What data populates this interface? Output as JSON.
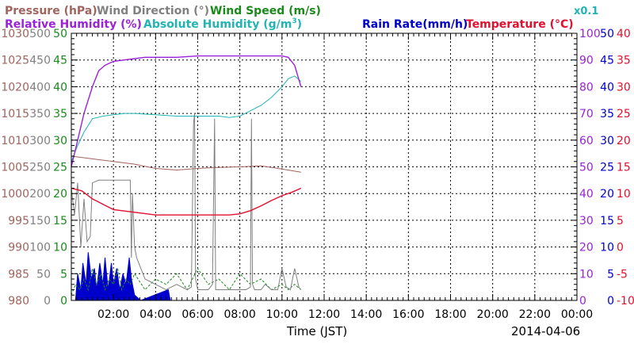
{
  "chart_data": {
    "type": "line",
    "xlabel": "Time (JST)",
    "date_label": "2014-04-06",
    "x_ticks": [
      "02:00",
      "04:00",
      "06:00",
      "08:00",
      "10:00",
      "12:00",
      "14:00",
      "16:00",
      "18:00",
      "20:00",
      "22:00",
      "00:00"
    ],
    "x_range_hours": [
      0,
      24
    ],
    "grid": true,
    "legend": {
      "row1": [
        {
          "key": "pressure",
          "label": "Pressure (hPa)",
          "color": "#a0645e"
        },
        {
          "key": "wind_dir",
          "label": "Wind Direction (°)",
          "color": "#808080"
        },
        {
          "key": "wind_speed",
          "label": "Wind Speed (m/s)",
          "color": "#1a8a1a"
        }
      ],
      "row2": [
        {
          "key": "rel_hum",
          "label": "Relative Humidity (%)",
          "color": "#9a22d8"
        },
        {
          "key": "abs_hum",
          "label": "Absolute Humidity (g/m",
          "sup": "3",
          "close": ")",
          "color": "#22b4b4"
        },
        {
          "key": "rain",
          "label": "Rain Rate(mm/h)",
          "color": "#0000cc"
        },
        {
          "key": "temp",
          "label": "Temperature (°C)",
          "color": "#e01030"
        }
      ],
      "abs_scale_note": "x0.1"
    },
    "axes": {
      "pressure": {
        "color": "#a0645e",
        "range": [
          980,
          1030
        ],
        "ticks": [
          "980",
          "985",
          "990",
          "995",
          "1000",
          "1005",
          "1010",
          "1015",
          "1020",
          "1025",
          "1030"
        ]
      },
      "wind_dir": {
        "color": "#808080",
        "range": [
          0,
          500
        ],
        "ticks": [
          "0",
          "50",
          "100",
          "150",
          "200",
          "250",
          "300",
          "350",
          "400",
          "450",
          "500"
        ]
      },
      "wind_speed": {
        "color": "#1a8a1a",
        "range": [
          0,
          50
        ],
        "ticks": [
          "0",
          "5",
          "10",
          "15",
          "20",
          "25",
          "30",
          "35",
          "40",
          "45",
          "50"
        ]
      },
      "rel_hum": {
        "color": "#9a22d8",
        "range": [
          0,
          100
        ],
        "ticks": [
          "0",
          "10",
          "20",
          "30",
          "40",
          "50",
          "60",
          "70",
          "80",
          "90",
          "100"
        ]
      },
      "rain": {
        "color": "#0000cc",
        "range": [
          0,
          50
        ],
        "ticks": [
          "0",
          "5",
          "10",
          "15",
          "20",
          "25",
          "30",
          "35",
          "40",
          "45",
          "50"
        ]
      },
      "temp": {
        "color": "#e01030",
        "range": [
          -10,
          40
        ],
        "ticks": [
          "-10",
          "-5",
          "0",
          "5",
          "10",
          "15",
          "20",
          "25",
          "30",
          "35",
          "40"
        ]
      }
    },
    "series": [
      {
        "key": "rel_hum",
        "name": "Relative Humidity (%)",
        "axis": "rel_hum",
        "x": [
          0,
          0.3,
          0.6,
          1.0,
          1.3,
          1.6,
          2.0,
          2.5,
          3.0,
          3.5,
          4.0,
          5.0,
          6.0,
          6.5,
          7.0,
          8.0,
          9.0,
          10.0,
          10.3,
          10.6,
          10.9
        ],
        "y": [
          50,
          60,
          70,
          80,
          86,
          88,
          89.5,
          90,
          90.5,
          91,
          91,
          91,
          91.5,
          91.5,
          91.5,
          91.5,
          91.5,
          91.5,
          91,
          88,
          80
        ]
      },
      {
        "key": "abs_hum",
        "name": "Absolute Humidity (g/m3)",
        "axis": "rel_hum",
        "x": [
          0,
          0.3,
          0.6,
          1.0,
          1.5,
          2.0,
          2.5,
          3.0,
          4.0,
          5.0,
          6.0,
          7.0,
          7.5,
          8.0,
          8.5,
          9.0,
          9.5,
          10.0,
          10.3,
          10.6,
          10.9
        ],
        "y": [
          52,
          58,
          63,
          68,
          69,
          69.5,
          70,
          70,
          69.5,
          69,
          69,
          69,
          68.5,
          69,
          71,
          73,
          76,
          80,
          83,
          84,
          82
        ]
      },
      {
        "key": "pressure",
        "name": "Pressure (hPa)",
        "axis": "pressure",
        "x": [
          0,
          1,
          2,
          3,
          4,
          5,
          6,
          7,
          8,
          9,
          10,
          10.9
        ],
        "y": [
          1007,
          1006.5,
          1006,
          1005.5,
          1004.7,
          1004.4,
          1004.7,
          1004.9,
          1005,
          1005.2,
          1004.6,
          1004
        ]
      },
      {
        "key": "temp",
        "name": "Temperature (°C)",
        "axis": "temp",
        "x": [
          0,
          0.5,
          1.0,
          1.5,
          2.0,
          3.0,
          4.0,
          5.0,
          6.0,
          7.0,
          7.5,
          8.0,
          8.5,
          9.0,
          9.5,
          10.0,
          10.5,
          10.9
        ],
        "y": [
          11,
          10.5,
          9,
          8,
          7,
          6.5,
          6,
          6,
          6,
          6,
          6,
          6.2,
          6.8,
          7.7,
          8.7,
          9.6,
          10.3,
          11
        ]
      },
      {
        "key": "wind_dir",
        "name": "Wind Direction (°)",
        "axis": "wind_dir",
        "x": [
          0,
          0.15,
          0.3,
          0.45,
          0.6,
          0.75,
          0.9,
          1.0,
          1.3,
          1.6,
          2.0,
          2.5,
          2.8,
          2.85,
          2.9,
          3.0,
          3.1,
          3.3,
          3.5,
          4.0,
          4.5,
          5.0,
          5.5,
          5.7,
          5.8,
          5.85,
          5.9,
          6.0,
          6.2,
          6.5,
          6.7,
          6.8,
          6.85,
          6.9,
          7.0,
          7.2,
          7.5,
          8.0,
          8.3,
          8.5,
          8.55,
          8.6,
          8.7,
          9.0,
          9.2,
          9.5,
          9.8,
          10.0,
          10.2,
          10.4,
          10.6,
          10.8,
          10.9
        ],
        "y": [
          210,
          160,
          220,
          100,
          190,
          110,
          120,
          220,
          225,
          225,
          225,
          225,
          225,
          80,
          200,
          100,
          80,
          60,
          40,
          30,
          20,
          30,
          20,
          25,
          330,
          350,
          40,
          20,
          20,
          20,
          30,
          340,
          20,
          20,
          20,
          20,
          20,
          20,
          20,
          25,
          340,
          30,
          20,
          20,
          30,
          20,
          20,
          60,
          25,
          20,
          60,
          25,
          20
        ]
      },
      {
        "key": "wind_speed",
        "name": "Wind Speed (m/s)",
        "axis": "wind_speed",
        "x": [
          0,
          0.2,
          0.4,
          0.6,
          0.8,
          1.0,
          1.2,
          1.4,
          1.6,
          1.8,
          2.0,
          2.2,
          2.4,
          2.6,
          2.8,
          3.0,
          3.5,
          4.0,
          4.5,
          5.0,
          5.5,
          6.0,
          6.5,
          7.0,
          7.5,
          8.0,
          8.5,
          9.0,
          9.5,
          10.0,
          10.3,
          10.6,
          10.9
        ],
        "y": [
          1,
          3,
          2,
          4,
          2,
          6,
          3,
          5,
          2,
          4,
          3,
          6,
          2,
          4,
          3,
          5,
          2,
          4,
          3,
          5,
          2,
          6,
          3,
          4,
          2,
          5,
          3,
          4,
          2,
          3,
          2,
          3,
          2
        ]
      },
      {
        "key": "rain",
        "name": "Rain Rate(mm/h)",
        "axis": "rain",
        "x": [
          0.2,
          0.3,
          0.45,
          0.55,
          0.7,
          0.8,
          0.95,
          1.1,
          1.2,
          1.35,
          1.5,
          1.6,
          1.75,
          1.9,
          2.0,
          2.15,
          2.3,
          2.45,
          2.6,
          2.75,
          2.85,
          3.0,
          3.3,
          4.6,
          4.7
        ],
        "y": [
          0,
          5,
          2,
          7,
          3,
          9,
          4,
          6,
          2,
          7,
          3,
          8,
          2,
          7,
          3,
          6,
          2,
          5,
          3,
          8,
          4,
          1,
          0,
          2,
          0
        ]
      }
    ]
  }
}
